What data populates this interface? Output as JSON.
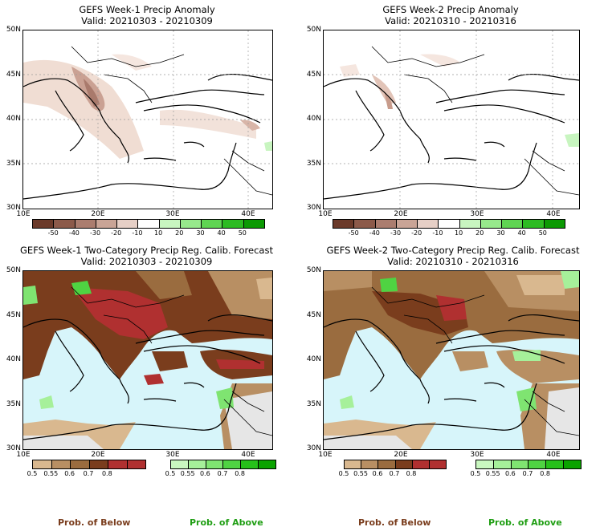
{
  "panels": [
    {
      "title": "GEFS Week-1 Precip Anomaly",
      "valid": "Valid: 20210303 - 20210309"
    },
    {
      "title": "GEFS Week-2 Precip Anomaly",
      "valid": "Valid: 20210310 - 20210316"
    },
    {
      "title": "GEFS Week-1 Two-Category Precip Reg. Calib. Forecast",
      "valid": "Valid: 20210303 - 20210309"
    },
    {
      "title": "GEFS Week-2 Two-Category Precip Reg. Calib. Forecast",
      "valid": "Valid: 20210310 - 20210316"
    }
  ],
  "lat_labels": [
    "50N",
    "45N",
    "40N",
    "35N",
    "30N"
  ],
  "lon_labels": [
    "10E",
    "20E",
    "30E",
    "40E"
  ],
  "anomaly_scale": {
    "ticks": [
      "-50",
      "-40",
      "-30",
      "-20",
      "-10",
      "10",
      "20",
      "30",
      "40",
      "50"
    ],
    "colors": [
      "#6b3a2a",
      "#8c5a4a",
      "#ab7d6f",
      "#c9a496",
      "#e6cfc6",
      "#ffffff",
      "#c8f5c0",
      "#97e88c",
      "#5fd452",
      "#2dbb22",
      "#0c9a04"
    ]
  },
  "below_scale": {
    "ticks": [
      "0.5",
      "0.55",
      "0.6",
      "0.7",
      "0.8"
    ],
    "colors": [
      "#d9b88f",
      "#b88f63",
      "#9a6c3f",
      "#7a3d1d",
      "#b03030",
      "#b03030"
    ]
  },
  "above_scale": {
    "ticks": [
      "0.5",
      "0.55",
      "0.6",
      "0.7",
      "0.8"
    ],
    "colors": [
      "#c9f7c0",
      "#a6f09a",
      "#7fe471",
      "#4fd342",
      "#26c11a",
      "#0aa300"
    ]
  },
  "footer": {
    "below": "Prob. of Below",
    "above": "Prob. of Above"
  },
  "colors": {
    "sea": "#d7f5fa",
    "dry": "#e6e6e6",
    "below_label": "#7a3d1d",
    "above_label": "#1f9e13"
  }
}
